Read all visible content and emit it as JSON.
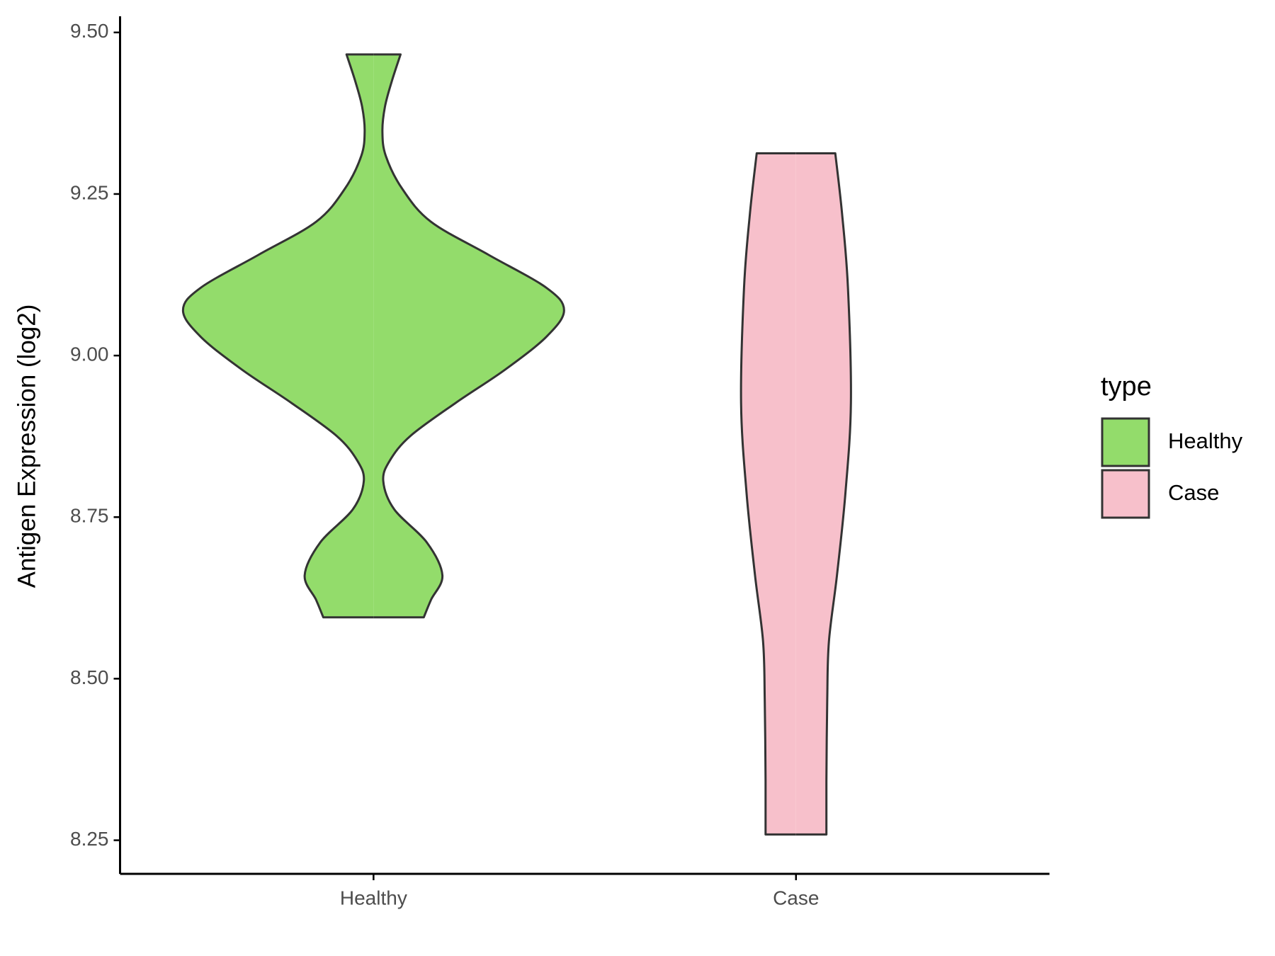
{
  "chart_data": {
    "type": "violin",
    "y_label": "Antigen Expression (log2)",
    "categories": [
      "Healthy",
      "Case"
    ],
    "ylim": [
      8.198,
      9.525
    ],
    "yticks": [
      {
        "value": 8.25,
        "label": "8.25"
      },
      {
        "value": 8.5,
        "label": "8.50"
      },
      {
        "value": 8.75,
        "label": "8.75"
      },
      {
        "value": 9.0,
        "label": "9.00"
      },
      {
        "value": 9.25,
        "label": "9.25"
      },
      {
        "value": 9.5,
        "label": "9.50"
      }
    ],
    "legend_title": "type",
    "legend_position": "right",
    "series": [
      {
        "name": "Healthy",
        "color": "#93dc6b",
        "y": [
          9.466,
          9.424,
          9.385,
          9.347,
          9.309,
          9.258,
          9.207,
          9.156,
          9.105,
          9.07,
          9.029,
          8.978,
          8.927,
          8.876,
          8.838,
          8.806,
          8.762,
          8.711,
          8.66,
          8.622,
          8.595
        ],
        "width": [
          0.064,
          0.043,
          0.027,
          0.021,
          0.029,
          0.068,
          0.136,
          0.272,
          0.409,
          0.451,
          0.409,
          0.311,
          0.195,
          0.088,
          0.039,
          0.023,
          0.049,
          0.126,
          0.163,
          0.136,
          0.119
        ]
      },
      {
        "name": "Case",
        "color": "#f7c0cb",
        "y": [
          9.313,
          9.22,
          9.105,
          8.927,
          8.787,
          8.66,
          8.558,
          8.469,
          8.342,
          8.259
        ],
        "width": [
          0.093,
          0.109,
          0.123,
          0.13,
          0.117,
          0.097,
          0.078,
          0.074,
          0.072,
          0.072
        ]
      }
    ]
  }
}
